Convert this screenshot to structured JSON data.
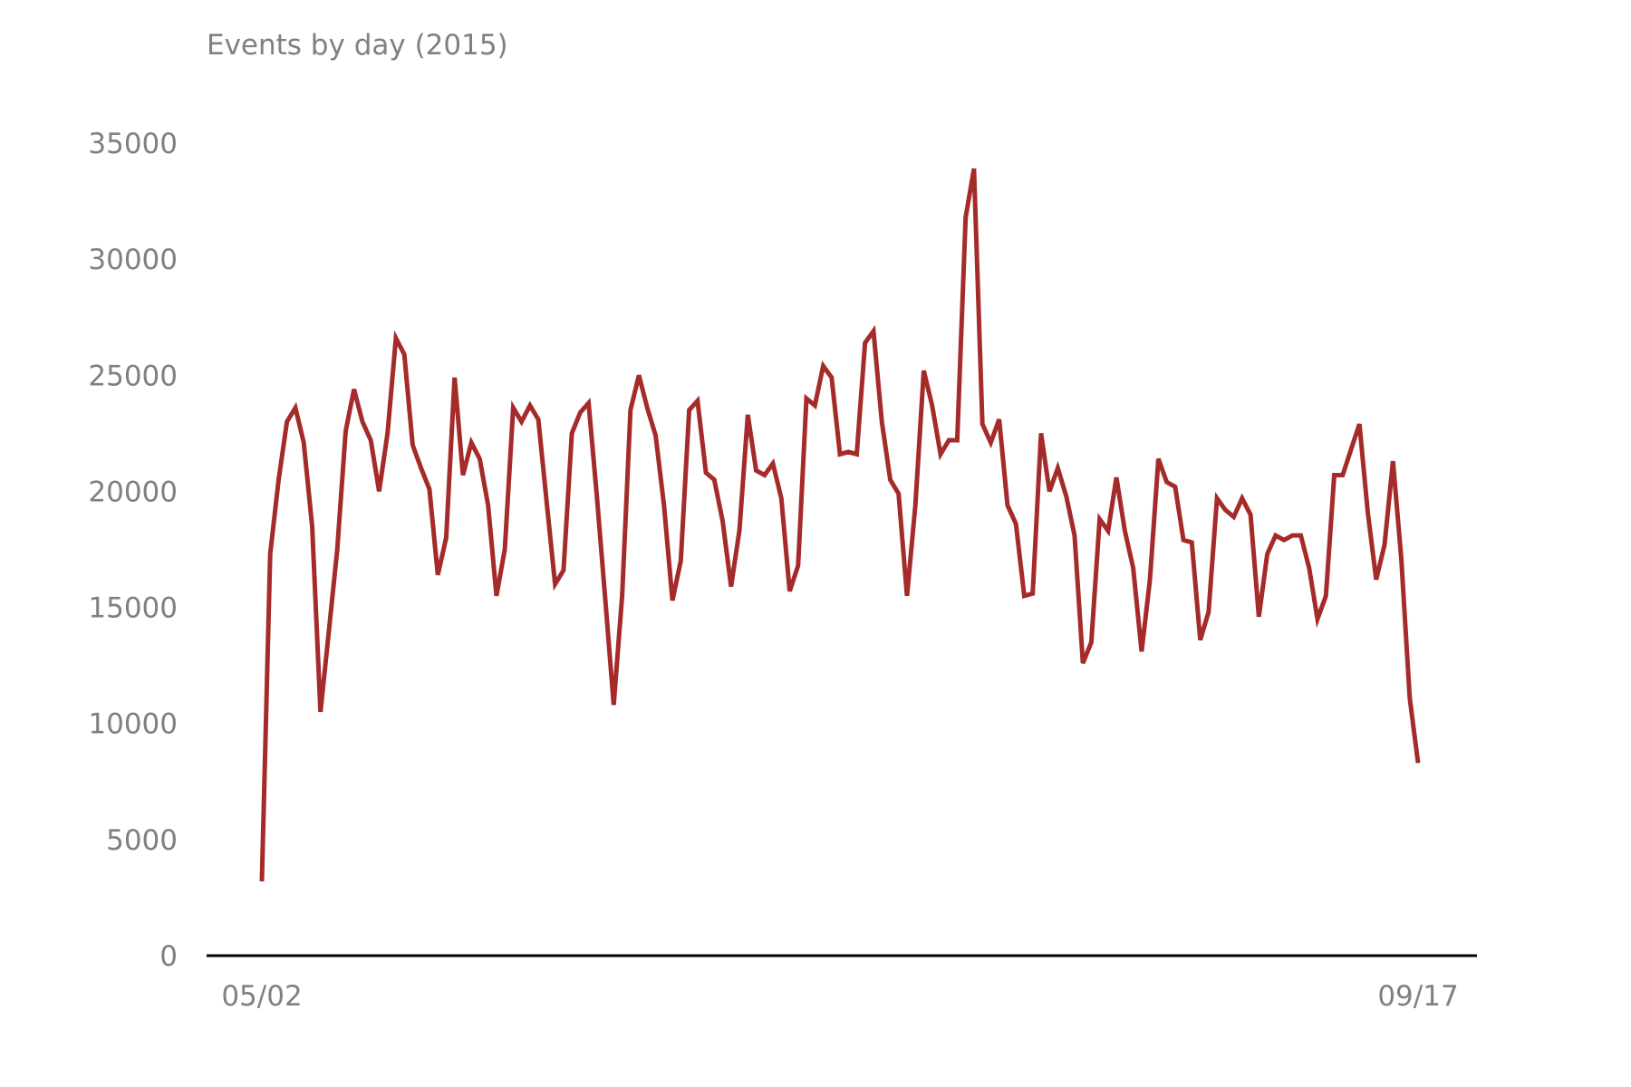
{
  "chart_data": {
    "type": "line",
    "title": "Events by day (2015)",
    "xlabel": "",
    "ylabel": "",
    "x_start": "2015-05-02",
    "x_end": "2015-09-17",
    "x_tick_labels": [
      "05/02",
      "09/17"
    ],
    "y_ticks": [
      0,
      5000,
      10000,
      15000,
      20000,
      25000,
      30000,
      35000
    ],
    "ylim": [
      0,
      35000
    ],
    "grid": false,
    "legend": "none",
    "line_color": "#a52a2a",
    "series": [
      {
        "values": [
          3200,
          17300,
          20500,
          23000,
          23600,
          22100,
          18500,
          10500,
          14000,
          17500,
          22600,
          24400,
          23000,
          22200,
          20000,
          22500,
          26600,
          25900,
          22000,
          21000,
          20100,
          16400,
          18000,
          24900,
          20700,
          22100,
          21400,
          19400,
          15500,
          17500,
          23600,
          23000,
          23700,
          23100,
          19500,
          16000,
          16600,
          22500,
          23400,
          23800,
          19700,
          15300,
          10800,
          15500,
          23500,
          25000,
          23600,
          22400,
          19400,
          15300,
          17000,
          23500,
          23900,
          20800,
          20500,
          18700,
          15900,
          18300,
          23300,
          20900,
          20700,
          21200,
          19700,
          15700,
          16800,
          24000,
          23700,
          25400,
          24900,
          21600,
          21700,
          21600,
          26400,
          26900,
          23000,
          20500,
          19900,
          15500,
          19400,
          25200,
          23700,
          21600,
          22200,
          22200,
          31800,
          33900,
          22900,
          22100,
          23100,
          19400,
          18600,
          15500,
          15600,
          22500,
          20000,
          21000,
          19800,
          18100,
          12600,
          13500,
          18800,
          18300,
          20600,
          18300,
          16700,
          13100,
          16200,
          21400,
          20400,
          20200,
          17900,
          17800,
          13600,
          14800,
          19700,
          19200,
          18900,
          19700,
          19000,
          14600,
          17300,
          18100,
          17900,
          18100,
          18100,
          16700,
          14500,
          15500,
          20700,
          20700,
          21800,
          22900,
          19100,
          16200,
          17700,
          21300,
          17100,
          11100,
          8300
        ]
      }
    ]
  }
}
